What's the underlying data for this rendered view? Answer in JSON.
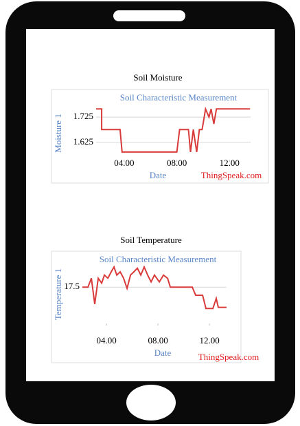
{
  "chart_data": [
    {
      "type": "line",
      "caption": "Soil Moisture",
      "title": "Soil Characteristic Measurement",
      "xlabel": "Date",
      "ylabel": "Moisture 1",
      "annotation": "ThingSpeak.com",
      "color": "#d93a3a",
      "x": [
        1.87,
        2.29,
        2.29,
        3.69,
        3.84,
        8.0,
        8.21,
        8.88,
        9.04,
        9.25,
        9.51,
        9.71,
        9.92,
        10.08,
        10.18,
        10.44,
        10.6,
        10.81,
        11.01,
        11.22,
        13.56
      ],
      "values": [
        1.757,
        1.757,
        1.676,
        1.676,
        1.587,
        1.587,
        1.676,
        1.676,
        1.587,
        1.676,
        1.587,
        1.676,
        1.676,
        1.725,
        1.757,
        1.725,
        1.757,
        1.698,
        1.757,
        1.757,
        1.757
      ],
      "xlim": [
        1.87,
        13.6
      ],
      "ylim": [
        1.557,
        1.766
      ],
      "xticks": [
        {
          "value": 4,
          "label": "04.00"
        },
        {
          "value": 8,
          "label": "08.00"
        },
        {
          "value": 12,
          "label": "12.00"
        }
      ],
      "yticks": [
        1.625,
        1.725
      ],
      "grid": true
    },
    {
      "type": "line",
      "caption": "Soil Temperature",
      "title": "Soil Characteristic Measurement",
      "xlabel": "Date",
      "ylabel": "Temperature 1",
      "annotation": "ThingSpeak.com",
      "color": "#d93a3a",
      "x": [
        2.13,
        2.56,
        2.83,
        3.09,
        3.36,
        3.63,
        3.84,
        4.11,
        4.37,
        4.59,
        4.8,
        5.07,
        5.33,
        5.6,
        5.87,
        6.13,
        6.4,
        6.67,
        6.93,
        7.2,
        7.47,
        7.73,
        8.11,
        8.43,
        8.75,
        8.96,
        10.03,
        10.67,
        10.93,
        11.47,
        11.73,
        12.27,
        12.53,
        12.69,
        13.33
      ],
      "values": [
        17.5,
        17.5,
        17.72,
        17.08,
        17.72,
        17.6,
        17.8,
        17.72,
        17.88,
        18.0,
        17.8,
        17.88,
        17.72,
        17.47,
        17.8,
        17.88,
        17.97,
        17.8,
        18.0,
        17.8,
        17.63,
        17.8,
        17.63,
        17.8,
        17.72,
        17.5,
        17.5,
        17.5,
        17.3,
        17.3,
        16.97,
        16.97,
        17.22,
        17.0,
        17.0
      ],
      "xlim": [
        2.13,
        13.33
      ],
      "ylim": [
        16.6,
        18.05
      ],
      "xticks": [
        {
          "value": 4,
          "label": "04.00"
        },
        {
          "value": 8,
          "label": "08.00"
        },
        {
          "value": 12,
          "label": "12.00"
        }
      ],
      "yticks": [
        17.5
      ],
      "grid": true
    }
  ]
}
